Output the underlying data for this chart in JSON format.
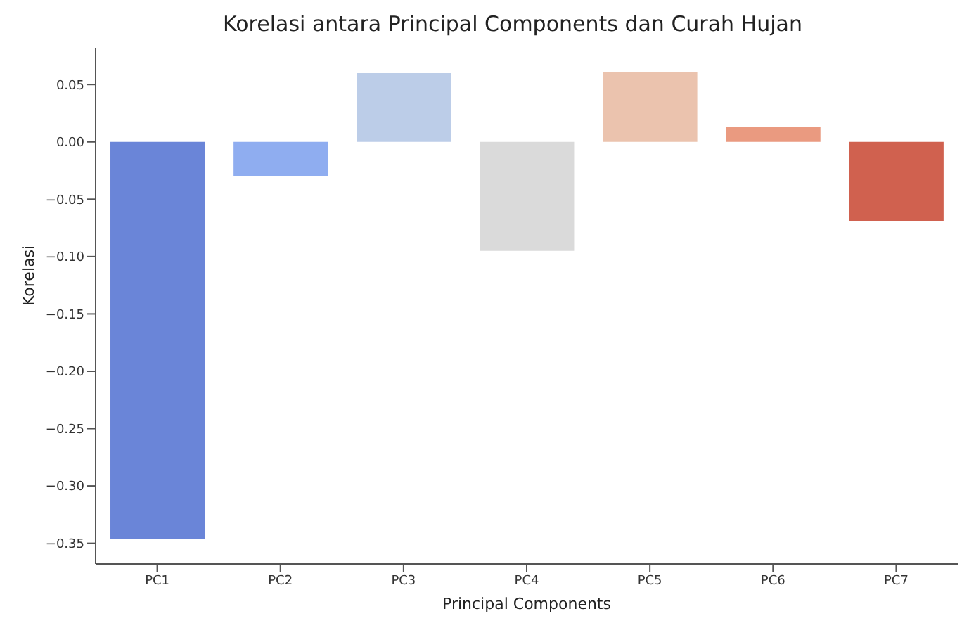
{
  "chart_data": {
    "type": "bar",
    "title": "Korelasi antara Principal Components dan Curah Hujan",
    "xlabel": "Principal Components",
    "ylabel": "Korelasi",
    "categories": [
      "PC1",
      "PC2",
      "PC3",
      "PC4",
      "PC5",
      "PC6",
      "PC7"
    ],
    "values": [
      -0.346,
      -0.03,
      0.06,
      -0.095,
      0.061,
      0.013,
      -0.069
    ],
    "colors": [
      "#6a85d8",
      "#8fadf0",
      "#bccde8",
      "#dadada",
      "#ebc3ae",
      "#ea9a80",
      "#d0614f"
    ],
    "ylim": [
      -0.368,
      0.082
    ],
    "yticks": [
      {
        "value": 0.05,
        "label": "0.05"
      },
      {
        "value": 0,
        "label": "0.00"
      },
      {
        "value": -0.05,
        "label": "−0.05"
      },
      {
        "value": -0.1,
        "label": "−0.10"
      },
      {
        "value": -0.15,
        "label": "−0.15"
      },
      {
        "value": -0.2,
        "label": "−0.20"
      },
      {
        "value": -0.25,
        "label": "−0.25"
      },
      {
        "value": -0.3,
        "label": "−0.30"
      },
      {
        "value": -0.35,
        "label": "−0.35"
      }
    ],
    "grid": false
  }
}
